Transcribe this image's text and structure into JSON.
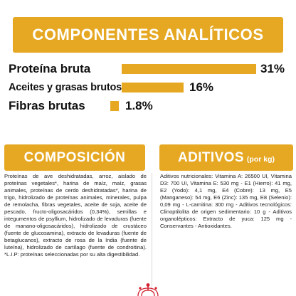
{
  "analytical": {
    "title": "COMPONENTES ANALÍTICOS",
    "rows": [
      {
        "label": "Proteína bruta",
        "percent": "31%",
        "value": 31
      },
      {
        "label": "Aceites y grasas brutos",
        "percent": "16%",
        "value": 16
      },
      {
        "label": "Fibras brutas",
        "percent": "1.8%",
        "value": 1.8
      }
    ]
  },
  "composition": {
    "title": "COMPOSICIÓN",
    "text": "Proteínas de ave deshidratadas, arroz, aislado de proteínas vegetales*, harina de maíz, maíz, grasas animales, proteínas de cerdo deshidratadas*, harina de trigo, hidrolizado de proteínas animales, minerales, pulpa de remolacha, fibras vegetales, aceite de soja, aceite de pescado, fructo-oligosacáridos (0,34%), semillas e integumentos de psyllium, hidrolizado de levaduras (fuente de manano-oligosacáridos), hidrolizado de crustáceo (fuente de glucosamina), extracto de levaduras (fuente de betaglucanos), extracto de rosa de la India (fuente de luteína), hidrolizado de cartílago (fuente de condroitina). *L.I.P: proteínas seleccionadas por su alta digestibilidad."
  },
  "additives": {
    "title": "ADITIVOS",
    "subtitle": "(por kg)",
    "text": "Aditivos nutricionales: Vitamina A: 26500 UI, Vitamina D3: 700 UI, Vitamina E: 530 mg - E1 (Hierro): 41 mg, E2 (Yodo): 4,1 mg, E4 (Cobre): 13 mg, E5 (Manganeso): 54 mg, E6 (Zinc): 135 mg, E8 (Selenio): 0,09 mg - L-carnitina: 300 mg - Aditivos tecnológicos: Clinoptilolita de origen sedimentario: 10 g - Aditivos organolépticos: Extracto de yuca: 125 mg - Conservantes - Antioxidantes."
  },
  "colors": {
    "accent": "#e6a823",
    "logo_red": "#d2202f"
  },
  "logo_icon": "royal-canin-crown-icon"
}
